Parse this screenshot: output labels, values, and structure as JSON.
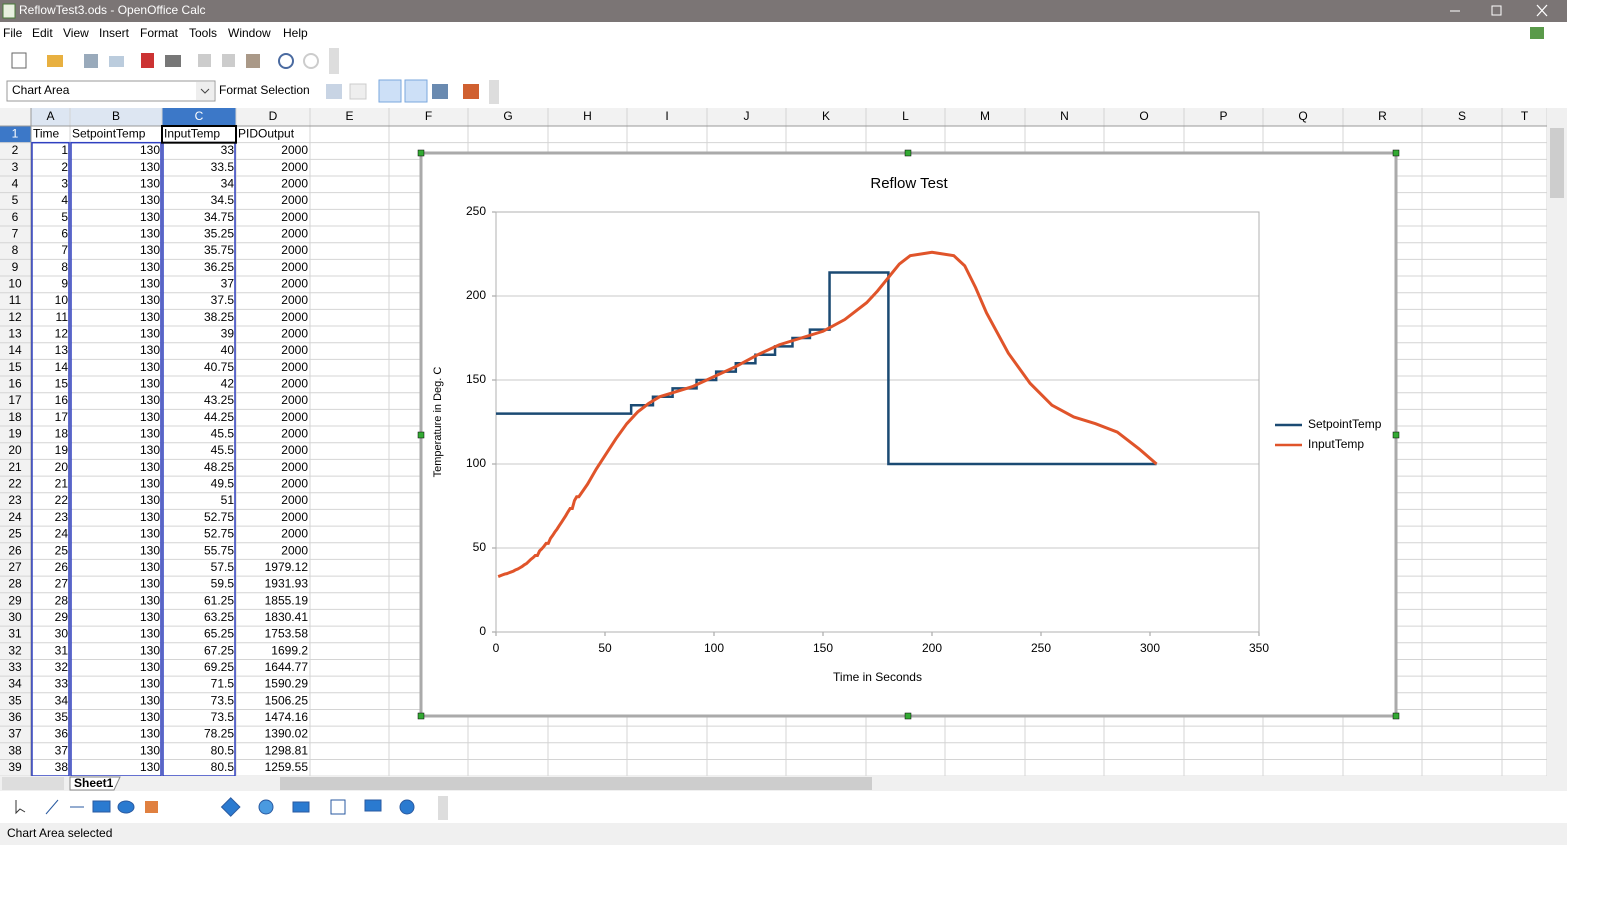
{
  "window": {
    "title": "ReflowTest3.ods - OpenOffice Calc"
  },
  "menu": [
    "File",
    "Edit",
    "View",
    "Insert",
    "Format",
    "Tools",
    "Window",
    "Help"
  ],
  "toolbar": {
    "name_box": "Chart Area",
    "format_selection": "Format Selection"
  },
  "sheet": {
    "columns": [
      "A",
      "B",
      "C",
      "D",
      "E",
      "F",
      "G",
      "H",
      "I",
      "J",
      "K",
      "L",
      "M",
      "N",
      "O",
      "P",
      "Q",
      "R",
      "S",
      "T"
    ],
    "row_numbers": [
      1,
      2,
      3,
      4,
      5,
      6,
      7,
      8,
      9,
      10,
      11,
      12,
      13,
      14,
      15,
      16,
      17,
      18,
      19,
      20,
      21,
      22,
      23,
      24,
      25,
      26,
      27,
      28,
      29,
      30,
      31,
      32,
      33,
      34,
      35,
      36,
      37,
      38,
      39
    ]
  },
  "table": {
    "header": [
      "Time",
      "SetpointTemp",
      "InputTemp",
      "PIDOutput"
    ],
    "rows": [
      [
        1,
        130,
        33,
        2000
      ],
      [
        2,
        130,
        33.5,
        2000
      ],
      [
        3,
        130,
        34,
        2000
      ],
      [
        4,
        130,
        34.5,
        2000
      ],
      [
        5,
        130,
        34.75,
        2000
      ],
      [
        6,
        130,
        35.25,
        2000
      ],
      [
        7,
        130,
        35.75,
        2000
      ],
      [
        8,
        130,
        36.25,
        2000
      ],
      [
        9,
        130,
        37,
        2000
      ],
      [
        10,
        130,
        37.5,
        2000
      ],
      [
        11,
        130,
        38.25,
        2000
      ],
      [
        12,
        130,
        39,
        2000
      ],
      [
        13,
        130,
        40,
        2000
      ],
      [
        14,
        130,
        40.75,
        2000
      ],
      [
        15,
        130,
        42,
        2000
      ],
      [
        16,
        130,
        43.25,
        2000
      ],
      [
        17,
        130,
        44.25,
        2000
      ],
      [
        18,
        130,
        45.5,
        2000
      ],
      [
        19,
        130,
        45.5,
        2000
      ],
      [
        20,
        130,
        48.25,
        2000
      ],
      [
        21,
        130,
        49.5,
        2000
      ],
      [
        22,
        130,
        51,
        2000
      ],
      [
        23,
        130,
        52.75,
        2000
      ],
      [
        24,
        130,
        52.75,
        2000
      ],
      [
        25,
        130,
        55.75,
        2000
      ],
      [
        26,
        130,
        57.5,
        1979.12
      ],
      [
        27,
        130,
        59.5,
        1931.93
      ],
      [
        28,
        130,
        61.25,
        1855.19
      ],
      [
        29,
        130,
        63.25,
        1830.41
      ],
      [
        30,
        130,
        65.25,
        1753.58
      ],
      [
        31,
        130,
        67.25,
        1699.2
      ],
      [
        32,
        130,
        69.25,
        1644.77
      ],
      [
        33,
        130,
        71.5,
        1590.29
      ],
      [
        34,
        130,
        73.5,
        1506.25
      ],
      [
        35,
        130,
        73.5,
        1474.16
      ],
      [
        36,
        130,
        78.25,
        1390.02
      ],
      [
        37,
        130,
        80.5,
        1298.81
      ],
      [
        38,
        130,
        80.5,
        1259.55
      ]
    ]
  },
  "tabs": [
    "Sheet1"
  ],
  "status": "Chart Area selected",
  "chart_data": {
    "type": "line",
    "title": "Reflow Test",
    "x_label": "Time in Seconds",
    "y_label": "Temperature in Deg. C",
    "xlim": [
      0,
      350
    ],
    "xticks": [
      0,
      50,
      100,
      150,
      200,
      250,
      300,
      350
    ],
    "ylim": [
      0,
      250
    ],
    "yticks": [
      0,
      50,
      100,
      150,
      200,
      250
    ],
    "grid": true,
    "legend": "right",
    "series": [
      {
        "name": "SetpointTemp",
        "color": "#1b4a73",
        "x": [
          0,
          62,
          62,
          72,
          72,
          81,
          81,
          92,
          92,
          101,
          101,
          110,
          110,
          119,
          119,
          128,
          128,
          136,
          136,
          144,
          144,
          153,
          153,
          180,
          180,
          303
        ],
        "values": [
          130,
          130,
          135,
          135,
          140,
          140,
          145,
          145,
          150,
          150,
          155,
          155,
          160,
          160,
          165,
          165,
          170,
          170,
          175,
          175,
          180,
          180,
          214,
          214,
          100,
          100
        ]
      },
      {
        "name": "InputTemp",
        "color": "#e0542a",
        "x": [
          1,
          2,
          3,
          4,
          5,
          6,
          7,
          8,
          9,
          10,
          11,
          12,
          13,
          14,
          15,
          16,
          17,
          18,
          19,
          20,
          21,
          22,
          23,
          24,
          25,
          26,
          27,
          28,
          29,
          30,
          31,
          32,
          33,
          34,
          35,
          36,
          37,
          38,
          42,
          46,
          50,
          55,
          60,
          65,
          70,
          75,
          80,
          90,
          100,
          110,
          120,
          130,
          140,
          150,
          160,
          170,
          175,
          180,
          185,
          190,
          200,
          210,
          215,
          220,
          225,
          235,
          245,
          255,
          265,
          275,
          285,
          295,
          303
        ],
        "values": [
          33,
          33.5,
          34,
          34.5,
          34.75,
          35.25,
          35.75,
          36.25,
          37,
          37.5,
          38.25,
          39,
          40,
          40.75,
          42,
          43.25,
          44.25,
          45.5,
          45.5,
          48.25,
          49.5,
          51,
          52.75,
          52.75,
          55.75,
          57.5,
          59.5,
          61.25,
          63.25,
          65.25,
          67.25,
          69.25,
          71.5,
          73.5,
          73.5,
          78.25,
          80.5,
          80.5,
          88,
          97,
          105,
          115,
          124,
          131,
          136,
          140,
          142,
          146,
          152,
          158,
          165,
          171,
          175,
          179,
          186,
          196,
          203,
          211,
          219,
          224,
          226,
          224,
          218,
          205,
          190,
          166,
          148,
          135,
          128,
          124,
          119,
          109,
          100
        ]
      }
    ]
  }
}
